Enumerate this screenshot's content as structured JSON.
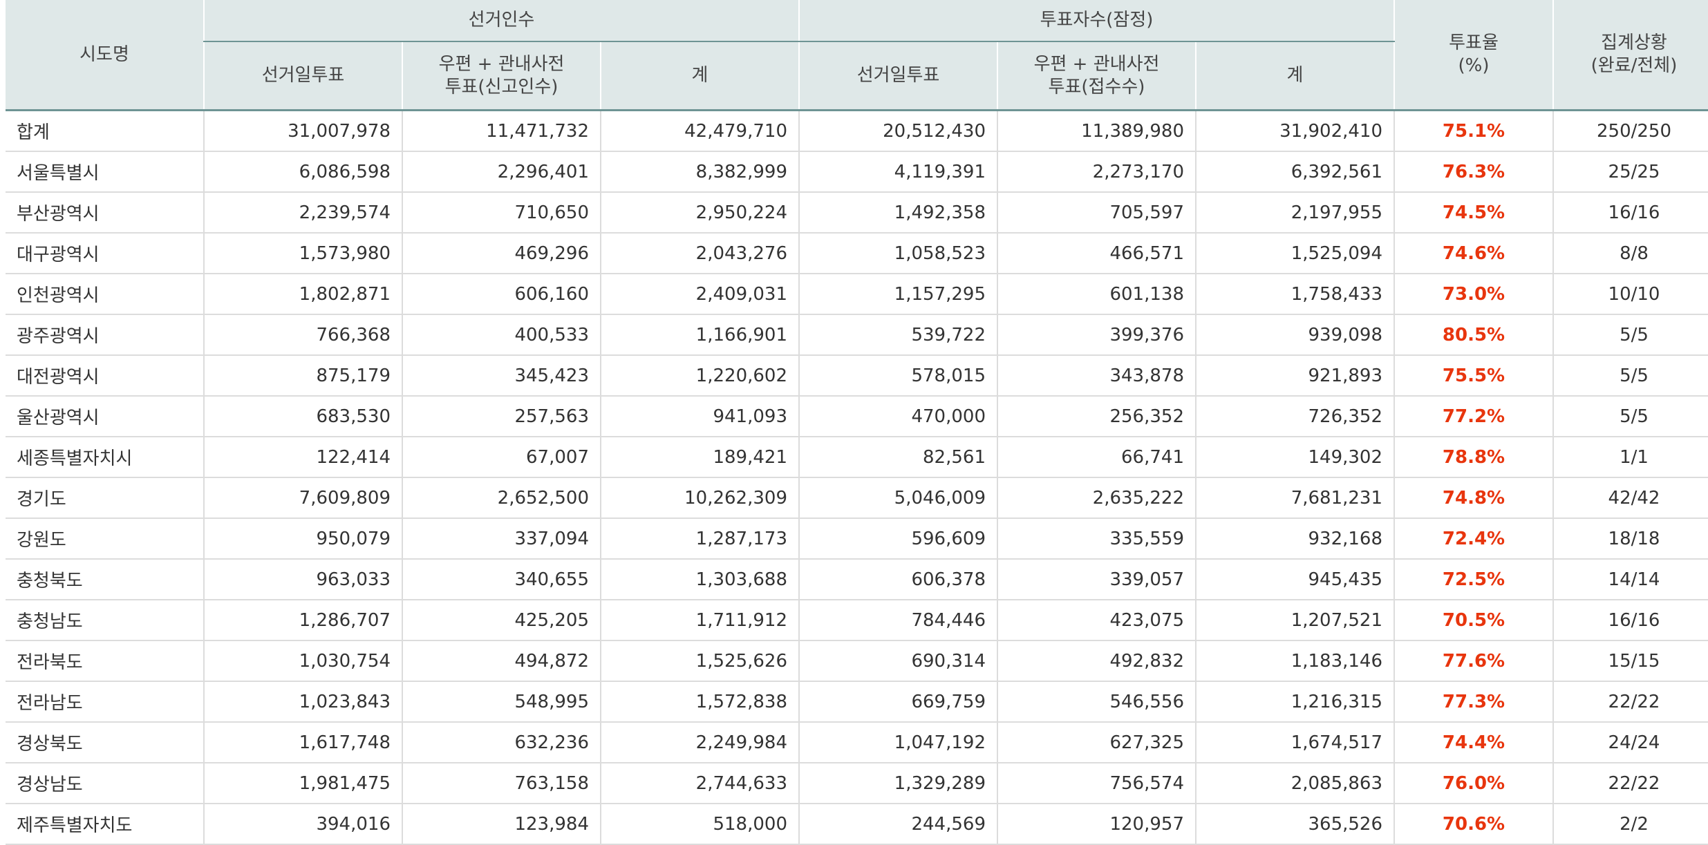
{
  "columns": {
    "region": "시도명",
    "electorate_group": "선거인수",
    "voters_group": "투표자수(잠정)",
    "turnout": "투표율\n(%)",
    "status": "집계상황\n(완료/전체)",
    "electorate_election_day": "선거일투표",
    "electorate_mail_early": "우편 + 관내사전\n투표(신고인수)",
    "electorate_total": "계",
    "voters_election_day": "선거일투표",
    "voters_mail_early": "우편 + 관내사전\n투표(접수수)",
    "voters_total": "계"
  },
  "rows": [
    [
      "합계",
      "31,007,978",
      "11,471,732",
      "42,479,710",
      "20,512,430",
      "11,389,980",
      "31,902,410",
      "75.1%",
      "250/250"
    ],
    [
      "서울특별시",
      "6,086,598",
      "2,296,401",
      "8,382,999",
      "4,119,391",
      "2,273,170",
      "6,392,561",
      "76.3%",
      "25/25"
    ],
    [
      "부산광역시",
      "2,239,574",
      "710,650",
      "2,950,224",
      "1,492,358",
      "705,597",
      "2,197,955",
      "74.5%",
      "16/16"
    ],
    [
      "대구광역시",
      "1,573,980",
      "469,296",
      "2,043,276",
      "1,058,523",
      "466,571",
      "1,525,094",
      "74.6%",
      "8/8"
    ],
    [
      "인천광역시",
      "1,802,871",
      "606,160",
      "2,409,031",
      "1,157,295",
      "601,138",
      "1,758,433",
      "73.0%",
      "10/10"
    ],
    [
      "광주광역시",
      "766,368",
      "400,533",
      "1,166,901",
      "539,722",
      "399,376",
      "939,098",
      "80.5%",
      "5/5"
    ],
    [
      "대전광역시",
      "875,179",
      "345,423",
      "1,220,602",
      "578,015",
      "343,878",
      "921,893",
      "75.5%",
      "5/5"
    ],
    [
      "울산광역시",
      "683,530",
      "257,563",
      "941,093",
      "470,000",
      "256,352",
      "726,352",
      "77.2%",
      "5/5"
    ],
    [
      "세종특별자치시",
      "122,414",
      "67,007",
      "189,421",
      "82,561",
      "66,741",
      "149,302",
      "78.8%",
      "1/1"
    ],
    [
      "경기도",
      "7,609,809",
      "2,652,500",
      "10,262,309",
      "5,046,009",
      "2,635,222",
      "7,681,231",
      "74.8%",
      "42/42"
    ],
    [
      "강원도",
      "950,079",
      "337,094",
      "1,287,173",
      "596,609",
      "335,559",
      "932,168",
      "72.4%",
      "18/18"
    ],
    [
      "충청북도",
      "963,033",
      "340,655",
      "1,303,688",
      "606,378",
      "339,057",
      "945,435",
      "72.5%",
      "14/14"
    ],
    [
      "충청남도",
      "1,286,707",
      "425,205",
      "1,711,912",
      "784,446",
      "423,075",
      "1,207,521",
      "70.5%",
      "16/16"
    ],
    [
      "전라북도",
      "1,030,754",
      "494,872",
      "1,525,626",
      "690,314",
      "492,832",
      "1,183,146",
      "77.6%",
      "15/15"
    ],
    [
      "전라남도",
      "1,023,843",
      "548,995",
      "1,572,838",
      "669,759",
      "546,556",
      "1,216,315",
      "77.3%",
      "22/22"
    ],
    [
      "경상북도",
      "1,617,748",
      "632,236",
      "2,249,984",
      "1,047,192",
      "627,325",
      "1,674,517",
      "74.4%",
      "24/24"
    ],
    [
      "경상남도",
      "1,981,475",
      "763,158",
      "2,744,633",
      "1,329,289",
      "756,574",
      "2,085,863",
      "76.0%",
      "22/22"
    ],
    [
      "제주특별자치도",
      "394,016",
      "123,984",
      "518,000",
      "244,569",
      "120,957",
      "365,526",
      "70.6%",
      "2/2"
    ]
  ],
  "colors": {
    "header_bg": "#dfe8e8",
    "header_rule": "#6e9494",
    "rate_text": "#e8350d",
    "row_rule": "#dcdcdc"
  }
}
